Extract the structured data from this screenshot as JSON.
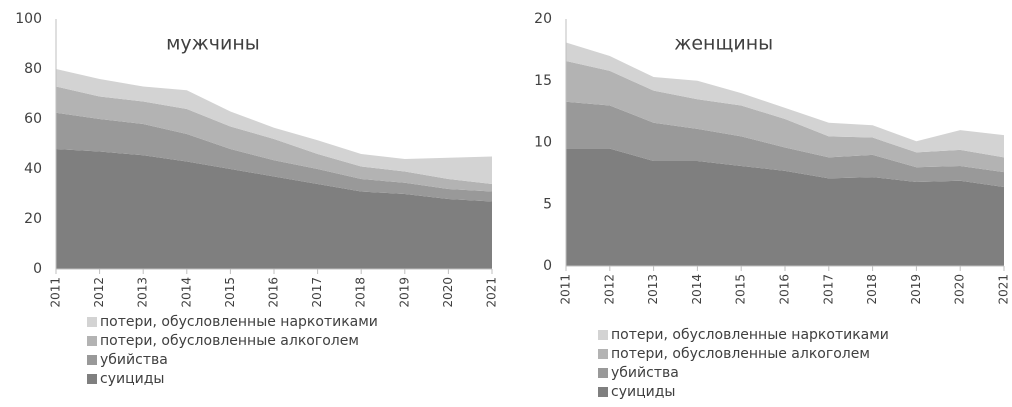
{
  "chart_data": [
    {
      "type": "stacked_area",
      "title": "мужчины",
      "categories": [
        "2011",
        "2012",
        "2013",
        "2014",
        "2015",
        "2016",
        "2017",
        "2018",
        "2019",
        "2020",
        "2021"
      ],
      "series": [
        {
          "name": "суициды",
          "color": "#7f7f7f",
          "values": [
            48,
            47,
            45.5,
            43,
            40,
            37,
            34,
            31,
            30,
            28,
            27
          ]
        },
        {
          "name": "убийства",
          "color": "#999999",
          "values": [
            14.5,
            13,
            12.5,
            11,
            8,
            6.5,
            6,
            5,
            4.5,
            4,
            4
          ]
        },
        {
          "name": "потери, обусловленные алкоголем",
          "color": "#b3b3b3",
          "values": [
            10.5,
            9,
            9,
            10,
            9,
            8.5,
            6,
            5,
            4.5,
            4,
            3
          ]
        },
        {
          "name": "потери, обусловленные наркотиками",
          "color": "#d3d3d3",
          "values": [
            7,
            7,
            6,
            7.5,
            6,
            4.5,
            5.5,
            5,
            5,
            8.5,
            11
          ]
        }
      ],
      "ylim": [
        0,
        100
      ],
      "yticks": [
        0,
        20,
        40,
        60,
        80,
        100
      ],
      "grid": false
    },
    {
      "type": "stacked_area",
      "title": "женщины",
      "categories": [
        "2011",
        "2012",
        "2013",
        "2014",
        "2015",
        "2016",
        "2017",
        "2018",
        "2019",
        "2020",
        "2021"
      ],
      "series": [
        {
          "name": "суициды",
          "color": "#7f7f7f",
          "values": [
            9.5,
            9.5,
            8.5,
            8.5,
            8.1,
            7.7,
            7.1,
            7.2,
            6.8,
            6.9,
            6.4
          ]
        },
        {
          "name": "убийства",
          "color": "#999999",
          "values": [
            3.8,
            3.5,
            3.1,
            2.6,
            2.4,
            1.9,
            1.7,
            1.8,
            1.2,
            1.2,
            1.2
          ]
        },
        {
          "name": "потери, обусловленные алкоголем",
          "color": "#b3b3b3",
          "values": [
            3.3,
            2.8,
            2.6,
            2.4,
            2.5,
            2.3,
            1.7,
            1.4,
            1.2,
            1.3,
            1.2
          ]
        },
        {
          "name": "потери, обусловленные наркотиками",
          "color": "#d3d3d3",
          "values": [
            1.5,
            1.2,
            1.1,
            1.5,
            1.0,
            0.9,
            1.1,
            1.0,
            0.9,
            1.6,
            1.8
          ]
        }
      ],
      "ylim": [
        0,
        20
      ],
      "yticks": [
        0,
        5,
        10,
        15,
        20
      ],
      "grid": false
    }
  ]
}
